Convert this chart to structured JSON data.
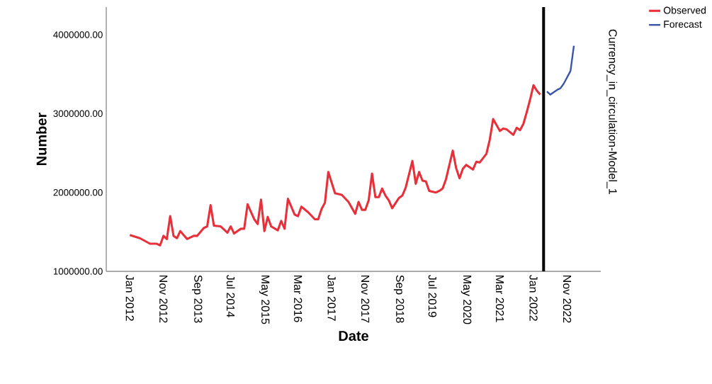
{
  "chart_data": {
    "type": "line",
    "xlabel": "Date",
    "ylabel": "Number",
    "annotations": [
      "Currency_in_circulation-Model_1"
    ],
    "xlim": [
      "2011-06",
      "2023-09"
    ],
    "ylim": [
      1000000,
      4350000
    ],
    "xticks": [
      {
        "value": "2012-01",
        "label": "Jan 2012"
      },
      {
        "value": "2012-11",
        "label": "Nov 2012"
      },
      {
        "value": "2013-09",
        "label": "Sep 2013"
      },
      {
        "value": "2014-07",
        "label": "Jul 2014"
      },
      {
        "value": "2015-05",
        "label": "May 2015"
      },
      {
        "value": "2016-03",
        "label": "Mar 2016"
      },
      {
        "value": "2017-01",
        "label": "Jan 2017"
      },
      {
        "value": "2017-11",
        "label": "Nov 2017"
      },
      {
        "value": "2018-09",
        "label": "Sep 2018"
      },
      {
        "value": "2019-07",
        "label": "Jul 2019"
      },
      {
        "value": "2020-05",
        "label": "May 2020"
      },
      {
        "value": "2021-03",
        "label": "Mar 2021"
      },
      {
        "value": "2022-01",
        "label": "Jan 2022"
      },
      {
        "value": "2022-11",
        "label": "Nov 2022"
      }
    ],
    "yticks": [
      {
        "value": 1000000,
        "label": "1000000.00"
      },
      {
        "value": 2000000,
        "label": "2000000.00"
      },
      {
        "value": 3000000,
        "label": "3000000.00"
      },
      {
        "value": 4000000,
        "label": "4000000.00"
      }
    ],
    "legend": "top right",
    "grid": false,
    "marker": "none",
    "line_style": "solid",
    "ref_lines": [
      {
        "axis": "x",
        "value": "2022-04",
        "color": "#000000"
      }
    ],
    "series": [
      {
        "name": "Observed",
        "color": "#e8303a",
        "x": [
          "2012-01",
          "2012-04",
          "2012-07",
          "2012-09",
          "2012-10",
          "2012-11",
          "2012-12",
          "2013-01",
          "2013-02",
          "2013-03",
          "2013-04",
          "2013-06",
          "2013-08",
          "2013-09",
          "2013-11",
          "2013-12",
          "2014-01",
          "2014-02",
          "2014-04",
          "2014-06",
          "2014-07",
          "2014-08",
          "2014-10",
          "2014-11",
          "2014-12",
          "2015-02",
          "2015-03",
          "2015-04",
          "2015-05",
          "2015-06",
          "2015-07",
          "2015-09",
          "2015-10",
          "2015-11",
          "2015-12",
          "2016-02",
          "2016-03",
          "2016-04",
          "2016-06",
          "2016-08",
          "2016-09",
          "2016-10",
          "2016-11",
          "2016-12",
          "2017-02",
          "2017-04",
          "2017-06",
          "2017-08",
          "2017-09",
          "2017-10",
          "2017-11",
          "2017-12",
          "2018-01",
          "2018-02",
          "2018-03",
          "2018-04",
          "2018-05",
          "2018-06",
          "2018-07",
          "2018-09",
          "2018-10",
          "2018-11",
          "2019-01",
          "2019-02",
          "2019-03",
          "2019-04",
          "2019-05",
          "2019-06",
          "2019-08",
          "2019-09",
          "2019-10",
          "2019-11",
          "2020-01",
          "2020-02",
          "2020-03",
          "2020-04",
          "2020-05",
          "2020-07",
          "2020-08",
          "2020-09",
          "2020-11",
          "2020-12",
          "2021-01",
          "2021-03",
          "2021-04",
          "2021-05",
          "2021-07",
          "2021-08",
          "2021-09",
          "2021-10",
          "2021-11",
          "2021-12",
          "2022-01",
          "2022-02",
          "2022-03"
        ],
        "values": [
          1460000,
          1420000,
          1350000,
          1350000,
          1330000,
          1450000,
          1410000,
          1700000,
          1450000,
          1420000,
          1510000,
          1410000,
          1450000,
          1450000,
          1550000,
          1570000,
          1840000,
          1580000,
          1570000,
          1490000,
          1570000,
          1480000,
          1540000,
          1540000,
          1850000,
          1660000,
          1600000,
          1910000,
          1510000,
          1690000,
          1570000,
          1520000,
          1640000,
          1540000,
          1920000,
          1720000,
          1700000,
          1820000,
          1750000,
          1660000,
          1660000,
          1790000,
          1870000,
          2260000,
          1990000,
          1970000,
          1880000,
          1730000,
          1880000,
          1780000,
          1780000,
          1900000,
          2240000,
          1940000,
          1940000,
          2050000,
          1960000,
          1900000,
          1800000,
          1930000,
          1960000,
          2060000,
          2400000,
          2110000,
          2260000,
          2150000,
          2140000,
          2020000,
          2000000,
          2020000,
          2050000,
          2170000,
          2530000,
          2310000,
          2180000,
          2300000,
          2350000,
          2290000,
          2390000,
          2380000,
          2490000,
          2670000,
          2930000,
          2780000,
          2810000,
          2800000,
          2730000,
          2820000,
          2790000,
          2870000,
          3020000,
          3180000,
          3360000,
          3290000,
          3240000
        ]
      },
      {
        "name": "Forecast",
        "color": "#3a56a8",
        "x": [
          "2022-05",
          "2022-06",
          "2022-08",
          "2022-09",
          "2022-10",
          "2022-12",
          "2023-01"
        ],
        "values": [
          3280000,
          3240000,
          3300000,
          3320000,
          3380000,
          3540000,
          3860000
        ]
      }
    ]
  }
}
